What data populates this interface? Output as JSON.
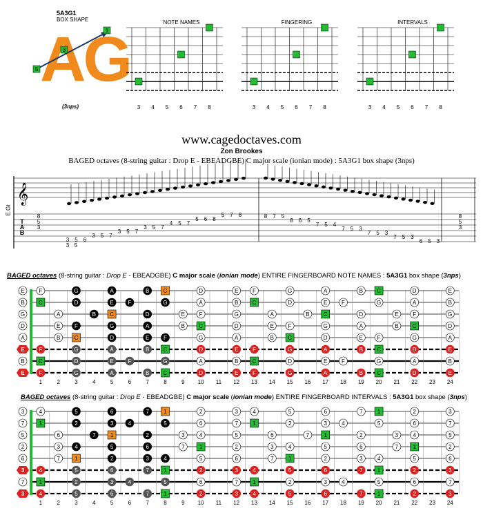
{
  "logo": {
    "code": "5A3G1",
    "caption": "BOX SHAPE",
    "letters": "AG",
    "nps": "(3nps)",
    "dots": [
      "1",
      "3",
      "5"
    ]
  },
  "mini_diagrams": [
    {
      "title": "NOTE NAMES",
      "frets": [
        "3",
        "4",
        "5",
        "6",
        "7",
        "8"
      ]
    },
    {
      "title": "FINGERING",
      "frets": [
        "3",
        "4",
        "5",
        "6",
        "7",
        "8"
      ]
    },
    {
      "title": "INTERVALS",
      "frets": [
        "3",
        "4",
        "5",
        "6",
        "7",
        "8"
      ]
    }
  ],
  "score": {
    "site": "www.cagedoctaves.com",
    "author": "Zon Brookes",
    "subtitle": "BAGED octaves (8-string guitar : Drop E - EBEADGBE) C major scale (ionian mode) : 5A3G1 box shape (3nps)",
    "side_label": "E.Gt",
    "tab_numbers_row1": "8 7 5    8 6 5    7 5 4    7 5 3    7 5 3",
    "tab_left": "3 5 6  3 5 7  3 5 7  3 5 7  4 5 7  5 6 8  5 7 8"
  },
  "board1": {
    "title_parts": [
      "BAGED octaves",
      " (8-string guitar : ",
      "Drop E",
      " - EBEADGBE) ",
      "C major scale",
      " (",
      "ionian mode",
      ") ENTIRE FINGERBOARD NOTE NAMES : ",
      "5A3G1",
      " box shape (",
      "3nps",
      ")"
    ],
    "open_strings": [
      "E",
      "B",
      "G",
      "D",
      "A",
      "E",
      "B",
      "E"
    ],
    "fret_numbers": [
      "1",
      "2",
      "3",
      "4",
      "5",
      "6",
      "7",
      "8",
      "9",
      "10",
      "11",
      "12",
      "13",
      "14",
      "15",
      "16",
      "17",
      "18",
      "19",
      "20",
      "21",
      "22",
      "23",
      "24"
    ]
  },
  "board2": {
    "title_parts": [
      "BAGED octaves",
      " (8-string guitar : ",
      "Drop E",
      " - EBEADGBE) ",
      "C major scale",
      " (",
      "ionian mode",
      ") ENTIRE FINGERBOARD INTERVALS : ",
      "5A3G1",
      " box shape (",
      "3nps",
      ")"
    ],
    "open_strings": [
      "3",
      "7",
      "5",
      "2",
      "6",
      "3",
      "7",
      "3"
    ],
    "fret_numbers": [
      "1",
      "2",
      "3",
      "4",
      "5",
      "6",
      "7",
      "8",
      "9",
      "10",
      "11",
      "12",
      "13",
      "14",
      "15",
      "16",
      "17",
      "18",
      "19",
      "20",
      "21",
      "22",
      "23",
      "24"
    ]
  },
  "colors": {
    "orange": "#f08a1c",
    "green": "#22bb33",
    "red": "#dd2222",
    "gray": "#555555"
  },
  "notes_board1": [
    [
      "E",
      "F",
      "",
      "G",
      "",
      "A",
      "",
      "B",
      "C",
      "",
      "D",
      "",
      "E",
      "F",
      "",
      "G",
      "",
      "A",
      "",
      "B",
      "C",
      "",
      "D",
      "",
      "E"
    ],
    [
      "B",
      "C",
      "",
      "D",
      "",
      "E",
      "F",
      "",
      "G",
      "",
      "A",
      "",
      "B",
      "C",
      "",
      "D",
      "",
      "E",
      "F",
      "",
      "G",
      "",
      "A",
      "",
      "B"
    ],
    [
      "G",
      "",
      "A",
      "",
      "B",
      "C",
      "",
      "D",
      "",
      "E",
      "F",
      "",
      "G",
      "",
      "A",
      "",
      "B",
      "C",
      "",
      "D",
      "",
      "E",
      "F",
      "",
      "G"
    ],
    [
      "D",
      "",
      "E",
      "F",
      "",
      "G",
      "",
      "A",
      "",
      "B",
      "C",
      "",
      "D",
      "",
      "E",
      "F",
      "",
      "G",
      "",
      "A",
      "",
      "B",
      "C",
      "",
      "D"
    ],
    [
      "A",
      "",
      "B",
      "C",
      "",
      "D",
      "",
      "E",
      "F",
      "",
      "G",
      "",
      "A",
      "",
      "B",
      "C",
      "",
      "D",
      "",
      "E",
      "F",
      "",
      "G",
      "",
      "A"
    ],
    [
      "E",
      "F",
      "",
      "G",
      "",
      "A",
      "",
      "B",
      "C",
      "",
      "D",
      "",
      "E",
      "F",
      "",
      "G",
      "",
      "A",
      "",
      "B",
      "C",
      "",
      "D",
      "",
      "E"
    ],
    [
      "B",
      "C",
      "",
      "D",
      "",
      "E",
      "F",
      "",
      "G",
      "",
      "A",
      "",
      "B",
      "C",
      "",
      "D",
      "",
      "E",
      "F",
      "",
      "G",
      "",
      "A",
      "",
      "B"
    ],
    [
      "E",
      "F",
      "",
      "G",
      "",
      "A",
      "",
      "B",
      "C",
      "",
      "D",
      "",
      "E",
      "F",
      "",
      "G",
      "",
      "A",
      "",
      "B",
      "C",
      "",
      "D",
      "",
      "E"
    ]
  ],
  "notes_board2": [
    [
      "3",
      "4",
      "",
      "5",
      "",
      "6",
      "",
      "7",
      "1",
      "",
      "2",
      "",
      "3",
      "4",
      "",
      "5",
      "",
      "6",
      "",
      "7",
      "1",
      "",
      "2",
      "",
      "3"
    ],
    [
      "7",
      "1",
      "",
      "2",
      "",
      "3",
      "4",
      "",
      "5",
      "",
      "6",
      "",
      "7",
      "1",
      "",
      "2",
      "",
      "3",
      "4",
      "",
      "5",
      "",
      "6",
      "",
      "7"
    ],
    [
      "5",
      "",
      "6",
      "",
      "7",
      "1",
      "",
      "2",
      "",
      "3",
      "4",
      "",
      "5",
      "",
      "6",
      "",
      "7",
      "1",
      "",
      "2",
      "",
      "3",
      "4",
      "",
      "5"
    ],
    [
      "2",
      "",
      "3",
      "4",
      "",
      "5",
      "",
      "6",
      "",
      "7",
      "1",
      "",
      "2",
      "",
      "3",
      "4",
      "",
      "5",
      "",
      "6",
      "",
      "7",
      "1",
      "",
      "2"
    ],
    [
      "6",
      "",
      "7",
      "1",
      "",
      "2",
      "",
      "3",
      "4",
      "",
      "5",
      "",
      "6",
      "",
      "7",
      "1",
      "",
      "2",
      "",
      "3",
      "4",
      "",
      "5",
      "",
      "6"
    ],
    [
      "3",
      "4",
      "",
      "5",
      "",
      "6",
      "",
      "7",
      "1",
      "",
      "2",
      "",
      "3",
      "4",
      "",
      "5",
      "",
      "6",
      "",
      "7",
      "1",
      "",
      "2",
      "",
      "3"
    ],
    [
      "7",
      "1",
      "",
      "2",
      "",
      "3",
      "4",
      "",
      "5",
      "",
      "6",
      "",
      "7",
      "1",
      "",
      "2",
      "",
      "3",
      "4",
      "",
      "5",
      "",
      "6",
      "",
      "7"
    ],
    [
      "3",
      "4",
      "",
      "5",
      "",
      "6",
      "",
      "7",
      "1",
      "",
      "2",
      "",
      "3",
      "4",
      "",
      "5",
      "",
      "6",
      "",
      "7",
      "1",
      "",
      "2",
      "",
      "3"
    ]
  ]
}
